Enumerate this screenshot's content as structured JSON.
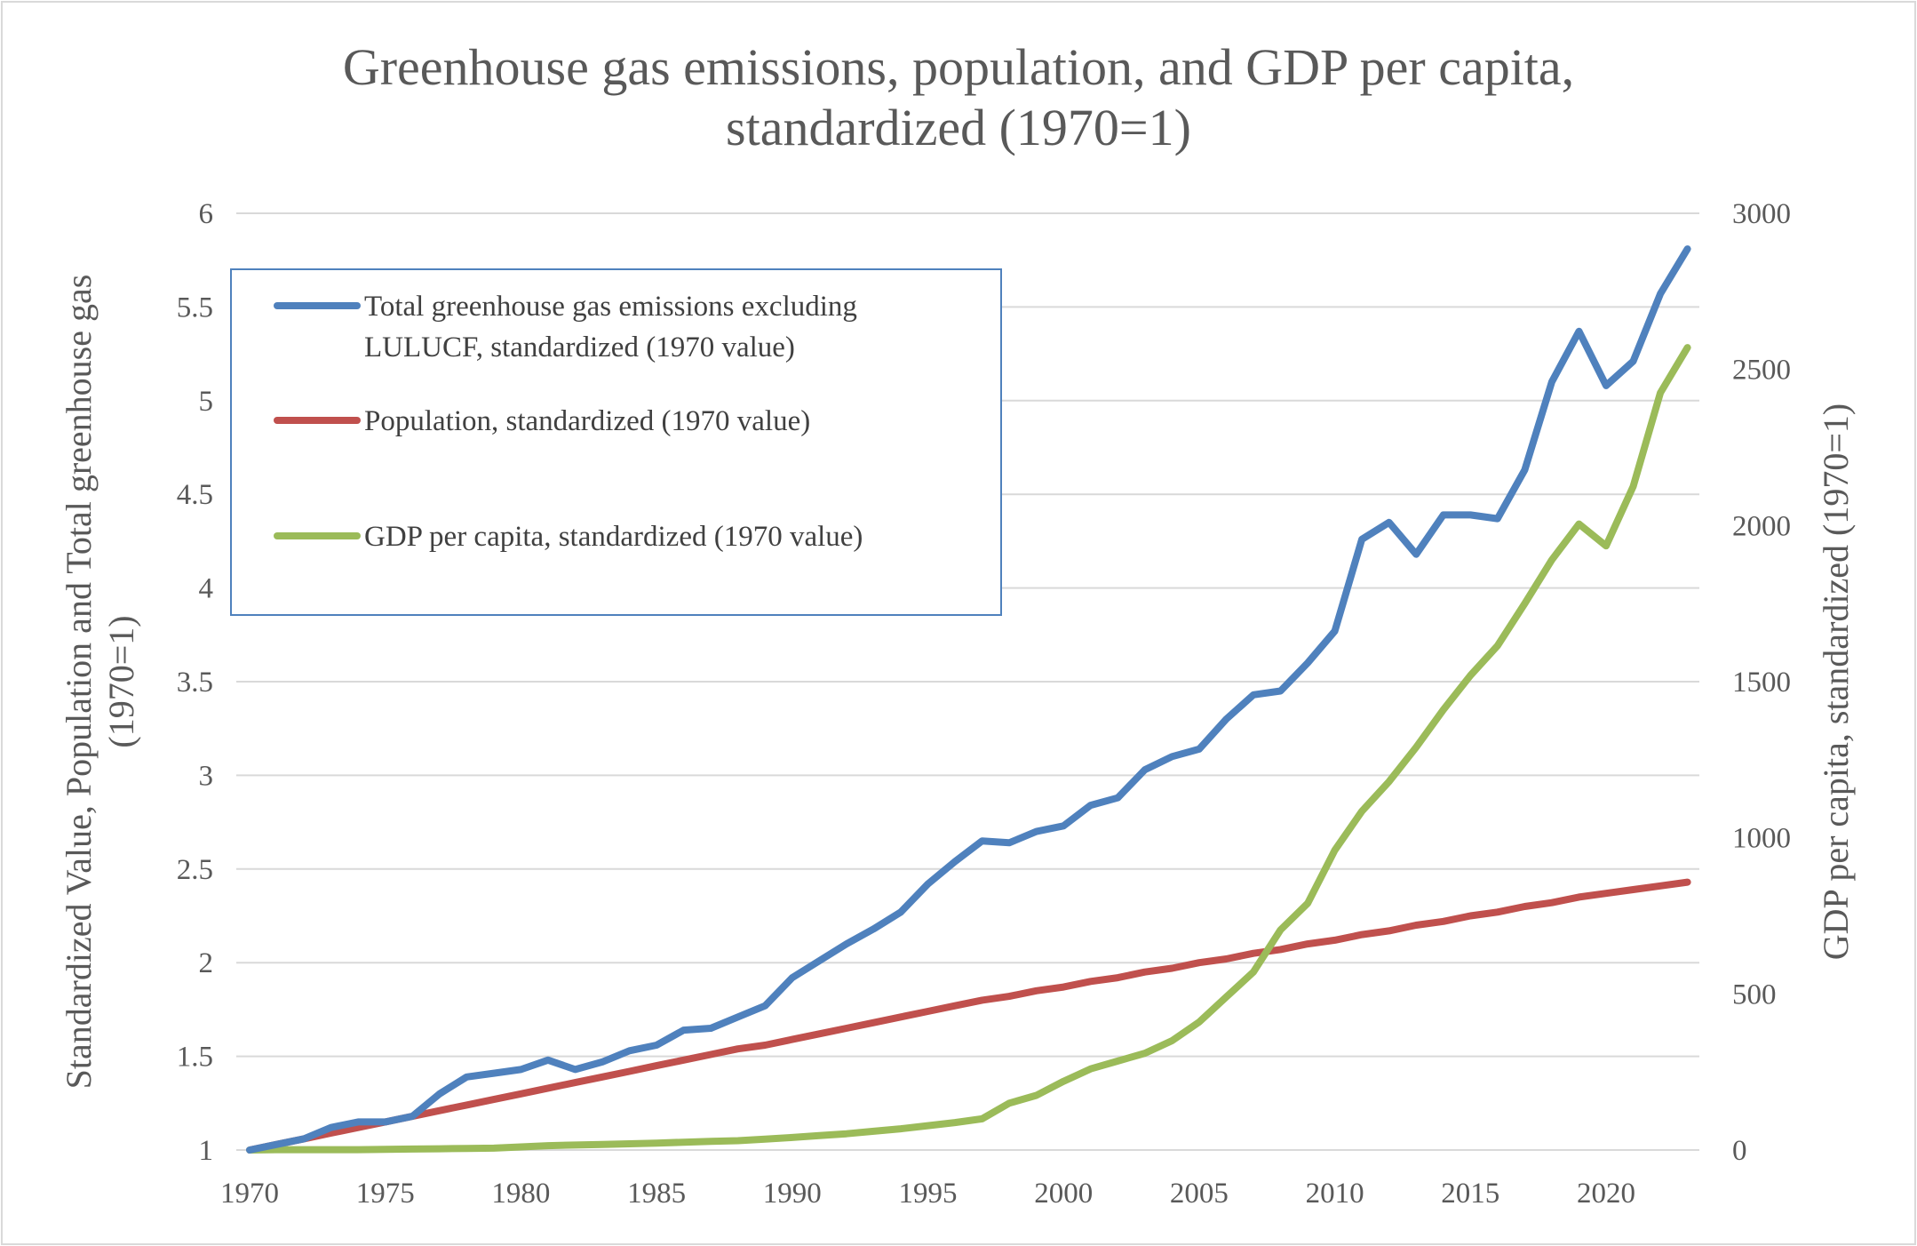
{
  "chart_data": {
    "type": "line",
    "title": [
      "Greenhouse gas emissions, population, and GDP per capita,",
      "standardized (1970=1)"
    ],
    "xlabel": "",
    "ylabel": [
      "Standardized Value, Population and Total greenhouse gas",
      "(1970=1)"
    ],
    "y2label": "GDP per capita, standardized (1970=1)",
    "ylim": [
      1,
      6
    ],
    "y2lim": [
      0,
      3000
    ],
    "xlim": [
      1970,
      2023
    ],
    "x_ticks": [
      1970,
      1975,
      1980,
      1985,
      1990,
      1995,
      2000,
      2005,
      2010,
      2015,
      2020
    ],
    "y_ticks": [
      "1",
      "1.5",
      "2",
      "2.5",
      "3",
      "3.5",
      "4",
      "4.5",
      "5",
      "5.5",
      "6"
    ],
    "y2_ticks": [
      "0",
      "500",
      "1000",
      "1500",
      "2000",
      "2500",
      "3000"
    ],
    "grid": true,
    "legend_placement": "top-left",
    "x": [
      1970,
      1971,
      1972,
      1973,
      1974,
      1975,
      1976,
      1977,
      1978,
      1979,
      1980,
      1981,
      1982,
      1983,
      1984,
      1985,
      1986,
      1987,
      1988,
      1989,
      1990,
      1991,
      1992,
      1993,
      1994,
      1995,
      1996,
      1997,
      1998,
      1999,
      2000,
      2001,
      2002,
      2003,
      2004,
      2005,
      2006,
      2007,
      2008,
      2009,
      2010,
      2011,
      2012,
      2013,
      2014,
      2015,
      2016,
      2017,
      2018,
      2019,
      2020,
      2021,
      2022,
      2023
    ],
    "series": [
      {
        "name": "Total greenhouse gas emissions excluding LULUCF, standardized (1970 value)",
        "legend_lines": [
          "Total greenhouse gas emissions excluding",
          "LULUCF, standardized (1970 value)"
        ],
        "axis": "left",
        "color": "#4F81BD",
        "values": [
          1.0,
          1.03,
          1.06,
          1.12,
          1.15,
          1.15,
          1.18,
          1.3,
          1.39,
          1.41,
          1.43,
          1.48,
          1.43,
          1.47,
          1.53,
          1.56,
          1.64,
          1.65,
          1.71,
          1.77,
          1.92,
          2.01,
          2.1,
          2.18,
          2.27,
          2.42,
          2.54,
          2.65,
          2.64,
          2.7,
          2.73,
          2.84,
          2.88,
          3.03,
          3.1,
          3.14,
          3.3,
          3.43,
          3.45,
          3.6,
          3.77,
          4.26,
          4.35,
          4.18,
          4.39,
          4.39,
          4.37,
          4.63,
          5.1,
          5.37,
          5.08,
          5.21,
          5.57,
          5.81
        ]
      },
      {
        "name": "Population, standardized (1970 value)",
        "legend_lines": [
          "Population, standardized (1970 value)"
        ],
        "axis": "left",
        "color": "#C0504D",
        "values": [
          1.0,
          1.03,
          1.06,
          1.09,
          1.12,
          1.15,
          1.18,
          1.21,
          1.24,
          1.27,
          1.3,
          1.33,
          1.36,
          1.39,
          1.42,
          1.45,
          1.48,
          1.51,
          1.54,
          1.56,
          1.59,
          1.62,
          1.65,
          1.68,
          1.71,
          1.74,
          1.77,
          1.8,
          1.82,
          1.85,
          1.87,
          1.9,
          1.92,
          1.95,
          1.97,
          2.0,
          2.02,
          2.05,
          2.07,
          2.1,
          2.12,
          2.15,
          2.17,
          2.2,
          2.22,
          2.25,
          2.27,
          2.3,
          2.32,
          2.35,
          2.37,
          2.39,
          2.41,
          2.43
        ]
      },
      {
        "name": "GDP per capita, standardized (1970 value)",
        "legend_lines": [
          "GDP per capita, standardized (1970 value)"
        ],
        "axis": "right",
        "color": "#9BBB59",
        "values": [
          0,
          1,
          1,
          1,
          1,
          2,
          3,
          4,
          5,
          6,
          10,
          14,
          16,
          18,
          20,
          22,
          25,
          28,
          30,
          35,
          40,
          46,
          52,
          60,
          68,
          78,
          88,
          100,
          150,
          175,
          220,
          260,
          285,
          310,
          350,
          410,
          490,
          570,
          705,
          790,
          960,
          1085,
          1180,
          1290,
          1410,
          1520,
          1615,
          1750,
          1890,
          2005,
          1935,
          2125,
          2425,
          2570
        ]
      }
    ]
  }
}
